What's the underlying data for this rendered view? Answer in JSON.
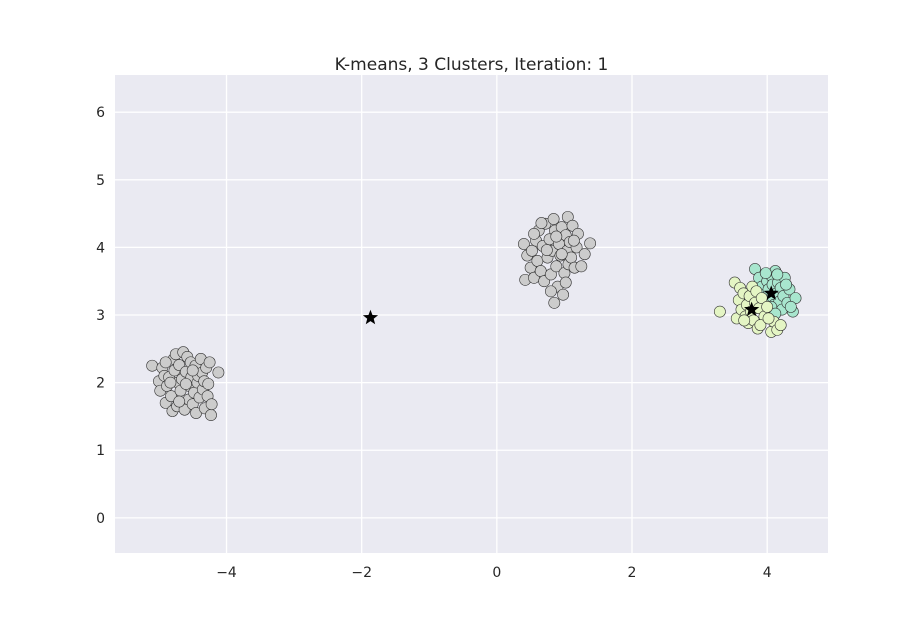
{
  "chart_data": {
    "type": "scatter",
    "title": "K-means, 3 Clusters, Iteration: 1",
    "xlabel": "",
    "ylabel": "",
    "xlim": [
      -5.65,
      4.9
    ],
    "ylim": [
      -0.52,
      6.55
    ],
    "xticks": [
      "−4",
      "−2",
      "0",
      "2",
      "4"
    ],
    "xtick_values": [
      -4,
      -2,
      0,
      2,
      4
    ],
    "yticks": [
      "0",
      "1",
      "2",
      "3",
      "4",
      "5",
      "6"
    ],
    "ytick_values": [
      0,
      1,
      2,
      3,
      4,
      5,
      6
    ],
    "grid": true,
    "background_color": "#eaeaf2",
    "grid_color": "#ffffff",
    "series": [
      {
        "color": "#cccccc",
        "points": [
          [
            -5.1,
            2.25
          ],
          [
            -5.0,
            2.02
          ],
          [
            -4.98,
            1.88
          ],
          [
            -4.95,
            2.22
          ],
          [
            -4.92,
            2.1
          ],
          [
            -4.9,
            1.7
          ],
          [
            -4.88,
            1.95
          ],
          [
            -4.85,
            2.08
          ],
          [
            -4.82,
            1.8
          ],
          [
            -4.8,
            1.58
          ],
          [
            -4.78,
            2.35
          ],
          [
            -4.77,
            2.18
          ],
          [
            -4.75,
            2.42
          ],
          [
            -4.73,
            1.65
          ],
          [
            -4.72,
            2.0
          ],
          [
            -4.7,
            2.26
          ],
          [
            -4.68,
            1.88
          ],
          [
            -4.66,
            2.05
          ],
          [
            -4.64,
            2.45
          ],
          [
            -4.62,
            1.6
          ],
          [
            -4.6,
            2.16
          ],
          [
            -4.58,
            2.38
          ],
          [
            -4.56,
            1.75
          ],
          [
            -4.55,
            1.95
          ],
          [
            -4.53,
            2.3
          ],
          [
            -4.52,
            2.08
          ],
          [
            -4.5,
            1.68
          ],
          [
            -4.48,
            1.85
          ],
          [
            -4.46,
            2.25
          ],
          [
            -4.45,
            1.55
          ],
          [
            -4.43,
            2.0
          ],
          [
            -4.42,
            2.1
          ],
          [
            -4.4,
            1.78
          ],
          [
            -4.38,
            2.35
          ],
          [
            -4.36,
            2.15
          ],
          [
            -4.35,
            1.9
          ],
          [
            -4.33,
            2.02
          ],
          [
            -4.32,
            1.62
          ],
          [
            -4.3,
            2.22
          ],
          [
            -4.28,
            1.8
          ],
          [
            -4.27,
            1.98
          ],
          [
            -4.25,
            2.3
          ],
          [
            -4.23,
            1.52
          ],
          [
            -4.22,
            1.68
          ],
          [
            -4.12,
            2.15
          ],
          [
            -4.9,
            2.3
          ],
          [
            -4.6,
            1.98
          ],
          [
            -4.7,
            1.72
          ],
          [
            -4.5,
            2.18
          ],
          [
            -4.83,
            2.0
          ],
          [
            0.4,
            4.05
          ],
          [
            0.42,
            3.52
          ],
          [
            0.45,
            3.88
          ],
          [
            0.5,
            3.7
          ],
          [
            0.52,
            3.95
          ],
          [
            0.55,
            3.55
          ],
          [
            0.58,
            4.1
          ],
          [
            0.6,
            3.8
          ],
          [
            0.62,
            4.25
          ],
          [
            0.65,
            3.65
          ],
          [
            0.68,
            4.02
          ],
          [
            0.7,
            3.5
          ],
          [
            0.72,
            4.35
          ],
          [
            0.75,
            3.85
          ],
          [
            0.78,
            4.12
          ],
          [
            0.8,
            3.6
          ],
          [
            0.82,
            3.95
          ],
          [
            0.84,
            4.42
          ],
          [
            0.85,
            3.18
          ],
          [
            0.86,
            4.25
          ],
          [
            0.88,
            3.72
          ],
          [
            0.9,
            3.42
          ],
          [
            0.92,
            4.05
          ],
          [
            0.94,
            3.88
          ],
          [
            0.96,
            4.3
          ],
          [
            0.98,
            3.3
          ],
          [
            1.0,
            3.62
          ],
          [
            1.02,
            4.18
          ],
          [
            1.04,
            3.95
          ],
          [
            1.05,
            4.45
          ],
          [
            1.06,
            3.75
          ],
          [
            1.08,
            4.08
          ],
          [
            1.1,
            3.85
          ],
          [
            1.12,
            4.32
          ],
          [
            1.15,
            3.7
          ],
          [
            1.18,
            4.0
          ],
          [
            1.2,
            4.2
          ],
          [
            1.25,
            3.72
          ],
          [
            1.3,
            3.9
          ],
          [
            1.38,
            4.06
          ],
          [
            0.66,
            4.36
          ],
          [
            0.74,
            3.96
          ],
          [
            0.88,
            4.16
          ],
          [
            0.96,
            3.9
          ],
          [
            1.02,
            3.48
          ],
          [
            0.55,
            4.2
          ],
          [
            0.8,
            3.35
          ],
          [
            1.14,
            4.1
          ]
        ]
      },
      {
        "color": "#a8e6ce",
        "points": [
          [
            3.82,
            3.68
          ],
          [
            3.88,
            3.55
          ],
          [
            3.92,
            3.42
          ],
          [
            3.96,
            3.3
          ],
          [
            4.0,
            3.5
          ],
          [
            4.02,
            3.38
          ],
          [
            4.04,
            3.22
          ],
          [
            4.06,
            3.58
          ],
          [
            4.08,
            3.45
          ],
          [
            4.1,
            3.15
          ],
          [
            4.12,
            3.65
          ],
          [
            4.14,
            3.32
          ],
          [
            4.16,
            3.48
          ],
          [
            4.18,
            3.2
          ],
          [
            4.2,
            3.4
          ],
          [
            4.22,
            3.08
          ],
          [
            4.24,
            3.28
          ],
          [
            4.26,
            3.55
          ],
          [
            4.3,
            3.18
          ],
          [
            4.33,
            3.38
          ],
          [
            4.38,
            3.05
          ],
          [
            4.42,
            3.25
          ],
          [
            3.98,
            3.62
          ],
          [
            4.06,
            3.12
          ],
          [
            4.15,
            3.6
          ],
          [
            4.28,
            3.45
          ],
          [
            3.94,
            3.18
          ],
          [
            4.12,
            3.02
          ],
          [
            4.35,
            3.12
          ]
        ]
      },
      {
        "color": "#e4f5c4",
        "points": [
          [
            3.3,
            3.05
          ],
          [
            3.52,
            3.48
          ],
          [
            3.55,
            2.95
          ],
          [
            3.58,
            3.22
          ],
          [
            3.6,
            3.4
          ],
          [
            3.62,
            3.08
          ],
          [
            3.65,
            3.32
          ],
          [
            3.68,
            2.98
          ],
          [
            3.7,
            3.15
          ],
          [
            3.72,
            2.88
          ],
          [
            3.74,
            3.28
          ],
          [
            3.76,
            3.05
          ],
          [
            3.78,
            3.42
          ],
          [
            3.8,
            2.92
          ],
          [
            3.82,
            3.18
          ],
          [
            3.84,
            3.35
          ],
          [
            3.86,
            2.8
          ],
          [
            3.88,
            3.1
          ],
          [
            3.92,
            3.25
          ],
          [
            3.96,
            2.98
          ],
          [
            4.0,
            3.12
          ],
          [
            4.06,
            2.75
          ],
          [
            4.1,
            2.9
          ],
          [
            4.15,
            2.78
          ],
          [
            4.2,
            2.85
          ],
          [
            3.66,
            2.92
          ],
          [
            3.9,
            2.85
          ],
          [
            4.02,
            2.95
          ]
        ]
      }
    ],
    "centroids": {
      "marker": "star",
      "color": "#000000",
      "points": [
        [
          -1.87,
          2.96
        ],
        [
          3.77,
          3.08
        ],
        [
          4.06,
          3.32
        ]
      ]
    }
  }
}
